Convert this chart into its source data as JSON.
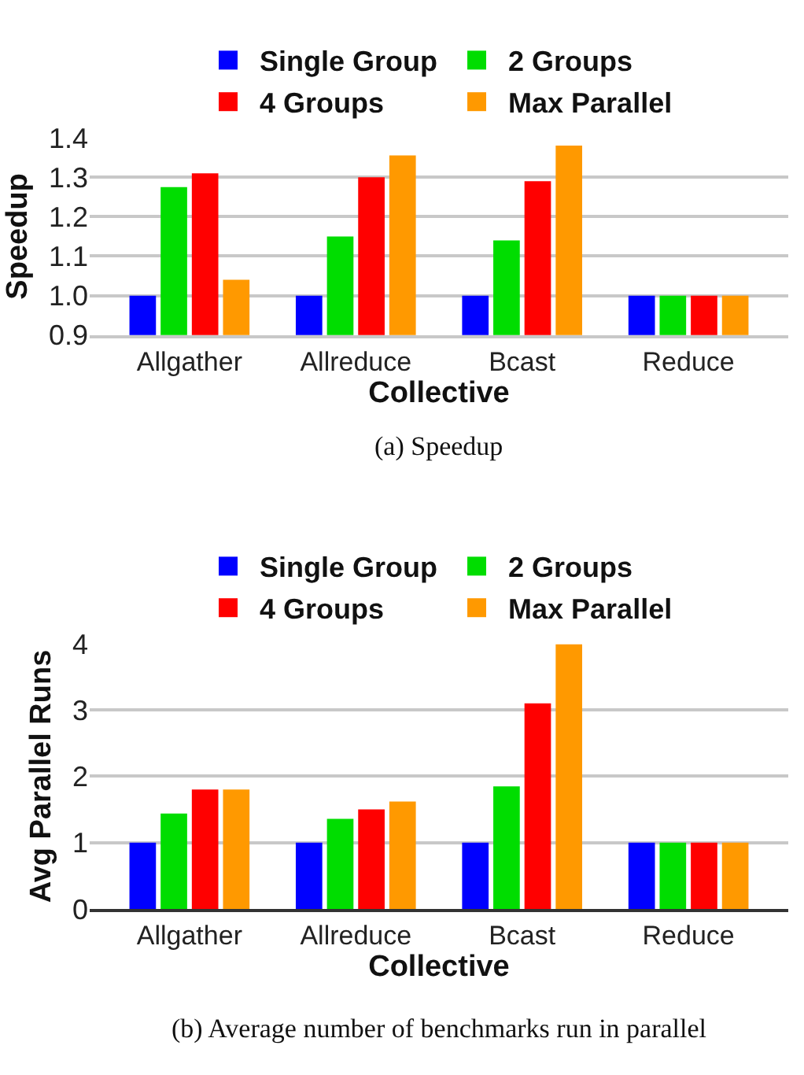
{
  "chart_data": [
    {
      "type": "bar",
      "xlabel": "Collective",
      "ylabel": "Speedup",
      "categories": [
        "Allgather",
        "Allreduce",
        "Bcast",
        "Reduce"
      ],
      "series": [
        {
          "name": "Single Group",
          "color": "#0000ff",
          "values": [
            1.0,
            1.0,
            1.0,
            1.0
          ]
        },
        {
          "name": "2 Groups",
          "color": "#00dd00",
          "values": [
            1.275,
            1.15,
            1.14,
            1.0
          ]
        },
        {
          "name": "4 Groups",
          "color": "#ff0000",
          "values": [
            1.31,
            1.3,
            1.29,
            1.0
          ]
        },
        {
          "name": "Max Parallel",
          "color": "#ff9900",
          "values": [
            1.04,
            1.355,
            1.38,
            1.0
          ]
        }
      ],
      "ylim": [
        0.9,
        1.4
      ],
      "yticks": [
        {
          "value": 0.9,
          "label": "0.9"
        },
        {
          "value": 1.0,
          "label": "1.0"
        },
        {
          "value": 1.1,
          "label": "1.1"
        },
        {
          "value": 1.2,
          "label": "1.2"
        },
        {
          "value": 1.3,
          "label": "1.3"
        },
        {
          "value": 1.4,
          "label": "1.4"
        }
      ],
      "grid": "y",
      "legend": "top",
      "annotations": [
        "(a) Speedup"
      ]
    },
    {
      "type": "bar",
      "xlabel": "Collective",
      "ylabel": "Avg Parallel Runs",
      "categories": [
        "Allgather",
        "Allreduce",
        "Bcast",
        "Reduce"
      ],
      "series": [
        {
          "name": "Single Group",
          "color": "#0000ff",
          "values": [
            1.0,
            1.0,
            1.0,
            1.0
          ]
        },
        {
          "name": "2 Groups",
          "color": "#00dd00",
          "values": [
            1.44,
            1.36,
            1.85,
            1.0
          ]
        },
        {
          "name": "4 Groups",
          "color": "#ff0000",
          "values": [
            1.8,
            1.5,
            3.1,
            1.0
          ]
        },
        {
          "name": "Max Parallel",
          "color": "#ff9900",
          "values": [
            1.8,
            1.62,
            3.99,
            1.0
          ]
        }
      ],
      "ylim": [
        0,
        4
      ],
      "yticks": [
        0,
        1,
        2,
        3,
        4
      ],
      "grid": "y",
      "legend": "top",
      "annotations": [
        "(b) Average number of benchmarks run in parallel"
      ]
    }
  ]
}
